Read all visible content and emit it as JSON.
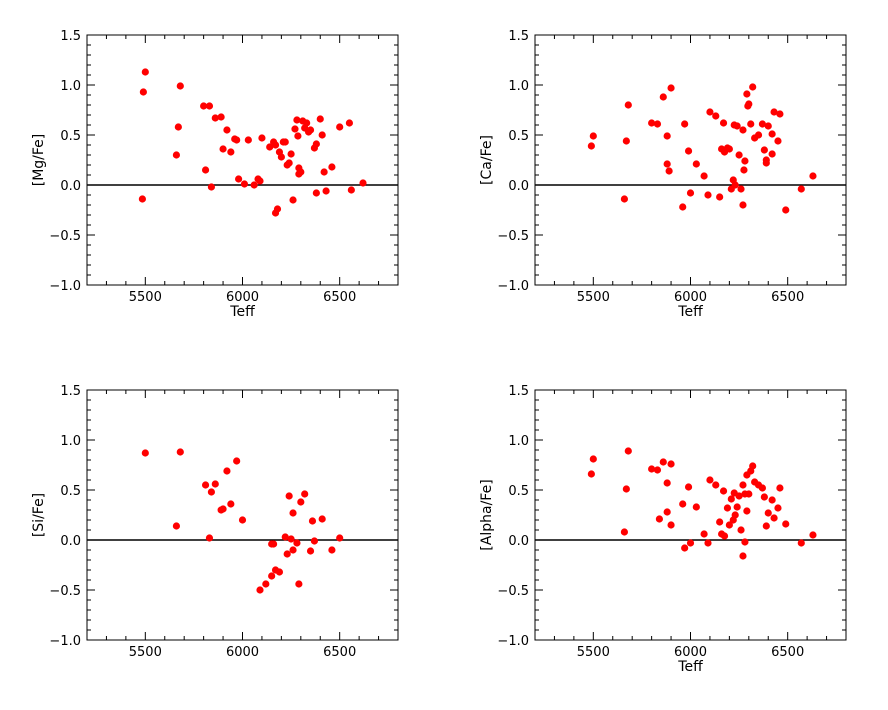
{
  "chart_data": [
    {
      "type": "scatter",
      "title": "",
      "xlabel": "Teff",
      "ylabel": "[Mg/Fe]",
      "xlim": [
        5200,
        6800
      ],
      "ylim": [
        -1.0,
        1.5
      ],
      "x_ticks": [
        5500,
        6000,
        6500
      ],
      "y_ticks": [
        -1.0,
        -0.5,
        0.0,
        0.5,
        1.0,
        1.5
      ],
      "x_tick_labels": [
        "5500",
        "6000",
        "6500"
      ],
      "y_tick_labels": [
        "−1.0",
        "−0.5",
        "0.0",
        "0.5",
        "1.0",
        "1.5"
      ],
      "reference_line_y": 0.0,
      "grid": false,
      "marker_color": "#ff0000",
      "points": [
        [
          5490,
          0.93
        ],
        [
          5500,
          1.13
        ],
        [
          5485,
          -0.14
        ],
        [
          5660,
          0.3
        ],
        [
          5670,
          0.58
        ],
        [
          5680,
          0.99
        ],
        [
          5800,
          0.79
        ],
        [
          5830,
          0.79
        ],
        [
          5810,
          0.15
        ],
        [
          5840,
          -0.02
        ],
        [
          5860,
          0.67
        ],
        [
          5890,
          0.68
        ],
        [
          5900,
          0.36
        ],
        [
          5920,
          0.55
        ],
        [
          5940,
          0.33
        ],
        [
          5970,
          0.45
        ],
        [
          5980,
          0.06
        ],
        [
          5960,
          0.46
        ],
        [
          6010,
          0.01
        ],
        [
          6030,
          0.45
        ],
        [
          6060,
          0.0
        ],
        [
          6080,
          0.06
        ],
        [
          6090,
          0.04
        ],
        [
          6100,
          0.47
        ],
        [
          6140,
          0.38
        ],
        [
          6160,
          0.43
        ],
        [
          6170,
          0.4
        ],
        [
          6180,
          -0.24
        ],
        [
          6170,
          -0.28
        ],
        [
          6190,
          0.33
        ],
        [
          6200,
          0.28
        ],
        [
          6210,
          0.43
        ],
        [
          6220,
          0.43
        ],
        [
          6230,
          0.2
        ],
        [
          6240,
          0.22
        ],
        [
          6250,
          0.31
        ],
        [
          6260,
          -0.15
        ],
        [
          6270,
          0.56
        ],
        [
          6280,
          0.65
        ],
        [
          6285,
          0.49
        ],
        [
          6290,
          0.17
        ],
        [
          6290,
          0.11
        ],
        [
          6300,
          0.13
        ],
        [
          6310,
          0.64
        ],
        [
          6320,
          0.57
        ],
        [
          6330,
          0.62
        ],
        [
          6340,
          0.53
        ],
        [
          6350,
          0.55
        ],
        [
          6370,
          0.37
        ],
        [
          6380,
          0.41
        ],
        [
          6380,
          -0.08
        ],
        [
          6400,
          0.66
        ],
        [
          6410,
          0.5
        ],
        [
          6420,
          0.13
        ],
        [
          6430,
          -0.06
        ],
        [
          6460,
          0.18
        ],
        [
          6500,
          0.58
        ],
        [
          6550,
          0.62
        ],
        [
          6560,
          -0.05
        ],
        [
          6620,
          0.02
        ]
      ]
    },
    {
      "type": "scatter",
      "title": "",
      "xlabel": "Teff",
      "ylabel": "[Ca/Fe]",
      "xlim": [
        5200,
        6800
      ],
      "ylim": [
        -1.0,
        1.5
      ],
      "x_ticks": [
        5500,
        6000,
        6500
      ],
      "y_ticks": [
        -1.0,
        -0.5,
        0.0,
        0.5,
        1.0,
        1.5
      ],
      "x_tick_labels": [
        "5500",
        "6000",
        "6500"
      ],
      "y_tick_labels": [
        "−1.0",
        "−0.5",
        "0.0",
        "0.5",
        "1.0",
        "1.5"
      ],
      "reference_line_y": 0.0,
      "grid": false,
      "marker_color": "#ff0000",
      "points": [
        [
          5490,
          0.39
        ],
        [
          5500,
          0.49
        ],
        [
          5660,
          -0.14
        ],
        [
          5670,
          0.44
        ],
        [
          5680,
          0.8
        ],
        [
          5800,
          0.62
        ],
        [
          5830,
          0.61
        ],
        [
          5860,
          0.88
        ],
        [
          5880,
          0.49
        ],
        [
          5880,
          0.21
        ],
        [
          5900,
          0.97
        ],
        [
          5890,
          0.14
        ],
        [
          5960,
          -0.22
        ],
        [
          5970,
          0.61
        ],
        [
          5990,
          0.34
        ],
        [
          6000,
          -0.08
        ],
        [
          6030,
          0.21
        ],
        [
          6070,
          0.09
        ],
        [
          6090,
          -0.1
        ],
        [
          6100,
          0.73
        ],
        [
          6130,
          0.69
        ],
        [
          6150,
          -0.12
        ],
        [
          6160,
          0.36
        ],
        [
          6170,
          0.62
        ],
        [
          6175,
          0.33
        ],
        [
          6190,
          0.37
        ],
        [
          6200,
          0.36
        ],
        [
          6210,
          -0.04
        ],
        [
          6220,
          0.05
        ],
        [
          6225,
          0.6
        ],
        [
          6230,
          0.0
        ],
        [
          6240,
          0.59
        ],
        [
          6250,
          0.3
        ],
        [
          6260,
          -0.04
        ],
        [
          6270,
          -0.2
        ],
        [
          6270,
          0.55
        ],
        [
          6275,
          0.15
        ],
        [
          6280,
          0.24
        ],
        [
          6290,
          0.91
        ],
        [
          6295,
          0.79
        ],
        [
          6300,
          0.81
        ],
        [
          6310,
          0.61
        ],
        [
          6320,
          0.98
        ],
        [
          6330,
          0.47
        ],
        [
          6350,
          0.5
        ],
        [
          6370,
          0.61
        ],
        [
          6380,
          0.35
        ],
        [
          6390,
          0.25
        ],
        [
          6390,
          0.22
        ],
        [
          6400,
          0.59
        ],
        [
          6420,
          0.51
        ],
        [
          6430,
          0.73
        ],
        [
          6450,
          0.44
        ],
        [
          6460,
          0.71
        ],
        [
          6490,
          -0.25
        ],
        [
          6570,
          -0.04
        ],
        [
          6630,
          0.09
        ],
        [
          6420,
          0.31
        ]
      ]
    },
    {
      "type": "scatter",
      "title": "",
      "xlabel": "",
      "ylabel": "[Si/Fe]",
      "xlim": [
        5200,
        6800
      ],
      "ylim": [
        -1.0,
        1.5
      ],
      "x_ticks": [
        5500,
        6000,
        6500
      ],
      "y_ticks": [
        -1.0,
        -0.5,
        0.0,
        0.5,
        1.0,
        1.5
      ],
      "x_tick_labels": [
        "5500",
        "6000",
        "6500"
      ],
      "y_tick_labels": [
        "−1.0",
        "−0.5",
        "0.0",
        "0.5",
        "1.0",
        "1.5"
      ],
      "reference_line_y": 0.0,
      "grid": false,
      "marker_color": "#ff0000",
      "points": [
        [
          5500,
          0.87
        ],
        [
          5660,
          0.14
        ],
        [
          5680,
          0.88
        ],
        [
          5810,
          0.55
        ],
        [
          5830,
          0.02
        ],
        [
          5840,
          0.48
        ],
        [
          5860,
          0.56
        ],
        [
          5890,
          0.3
        ],
        [
          5900,
          0.31
        ],
        [
          5920,
          0.69
        ],
        [
          5940,
          0.36
        ],
        [
          5970,
          0.79
        ],
        [
          6000,
          0.2
        ],
        [
          6090,
          -0.5
        ],
        [
          6120,
          -0.44
        ],
        [
          6150,
          -0.36
        ],
        [
          6150,
          -0.04
        ],
        [
          6160,
          -0.04
        ],
        [
          6170,
          -0.3
        ],
        [
          6190,
          -0.32
        ],
        [
          6220,
          0.03
        ],
        [
          6230,
          -0.14
        ],
        [
          6240,
          0.44
        ],
        [
          6250,
          0.01
        ],
        [
          6260,
          -0.1
        ],
        [
          6260,
          0.27
        ],
        [
          6280,
          -0.03
        ],
        [
          6290,
          -0.44
        ],
        [
          6300,
          0.38
        ],
        [
          6320,
          0.46
        ],
        [
          6350,
          -0.11
        ],
        [
          6360,
          0.19
        ],
        [
          6370,
          -0.01
        ],
        [
          6410,
          0.21
        ],
        [
          6460,
          -0.1
        ],
        [
          6500,
          0.02
        ]
      ]
    },
    {
      "type": "scatter",
      "title": "",
      "xlabel": "Teff",
      "ylabel": "[Alpha/Fe]",
      "xlim": [
        5200,
        6800
      ],
      "ylim": [
        -1.0,
        1.5
      ],
      "x_ticks": [
        5500,
        6000,
        6500
      ],
      "y_ticks": [
        -1.0,
        -0.5,
        0.0,
        0.5,
        1.0,
        1.5
      ],
      "x_tick_labels": [
        "5500",
        "6000",
        "6500"
      ],
      "y_tick_labels": [
        "−1.0",
        "−0.5",
        "0.0",
        "0.5",
        "1.0",
        "1.5"
      ],
      "reference_line_y": 0.0,
      "grid": false,
      "marker_color": "#ff0000",
      "points": [
        [
          5490,
          0.66
        ],
        [
          5500,
          0.81
        ],
        [
          5660,
          0.08
        ],
        [
          5670,
          0.51
        ],
        [
          5680,
          0.89
        ],
        [
          5800,
          0.71
        ],
        [
          5830,
          0.7
        ],
        [
          5840,
          0.21
        ],
        [
          5860,
          0.78
        ],
        [
          5880,
          0.57
        ],
        [
          5880,
          0.28
        ],
        [
          5900,
          0.76
        ],
        [
          5900,
          0.15
        ],
        [
          5960,
          0.36
        ],
        [
          5970,
          -0.08
        ],
        [
          5990,
          0.53
        ],
        [
          6000,
          -0.03
        ],
        [
          6030,
          0.33
        ],
        [
          6070,
          0.06
        ],
        [
          6090,
          -0.03
        ],
        [
          6100,
          0.6
        ],
        [
          6130,
          0.55
        ],
        [
          6150,
          0.18
        ],
        [
          6160,
          0.06
        ],
        [
          6170,
          0.49
        ],
        [
          6175,
          0.04
        ],
        [
          6190,
          0.32
        ],
        [
          6200,
          0.15
        ],
        [
          6210,
          0.41
        ],
        [
          6220,
          0.2
        ],
        [
          6225,
          0.47
        ],
        [
          6230,
          0.25
        ],
        [
          6240,
          0.33
        ],
        [
          6250,
          0.44
        ],
        [
          6260,
          0.1
        ],
        [
          6270,
          -0.16
        ],
        [
          6270,
          0.55
        ],
        [
          6280,
          0.46
        ],
        [
          6290,
          0.29
        ],
        [
          6290,
          0.65
        ],
        [
          6300,
          0.46
        ],
        [
          6310,
          0.69
        ],
        [
          6320,
          0.74
        ],
        [
          6330,
          0.58
        ],
        [
          6350,
          0.55
        ],
        [
          6370,
          0.52
        ],
        [
          6380,
          0.43
        ],
        [
          6390,
          0.14
        ],
        [
          6400,
          0.27
        ],
        [
          6420,
          0.4
        ],
        [
          6430,
          0.22
        ],
        [
          6450,
          0.32
        ],
        [
          6460,
          0.52
        ],
        [
          6490,
          0.16
        ],
        [
          6570,
          -0.03
        ],
        [
          6630,
          0.05
        ],
        [
          6280,
          -0.02
        ]
      ]
    }
  ]
}
